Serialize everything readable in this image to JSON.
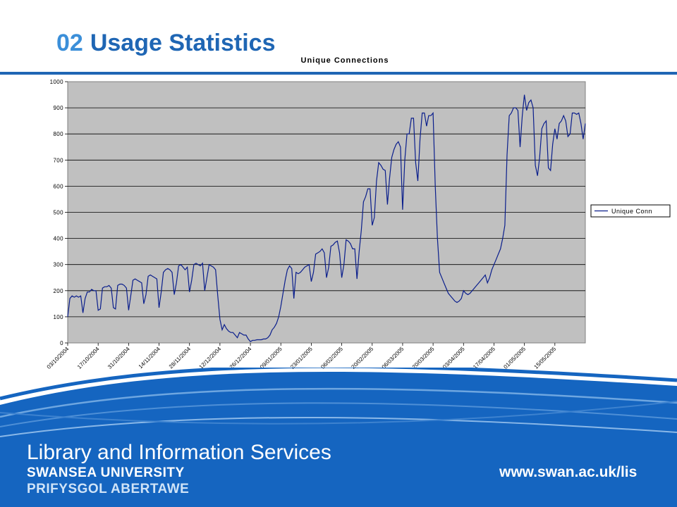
{
  "slide": {
    "number": "02",
    "title": "Usage Statistics"
  },
  "footer": {
    "department": "Library and Information Services",
    "university_en": "SWANSEA UNIVERSITY",
    "university_cy": "PRIFYSGOL ABERTAWE",
    "url": "www.swan.ac.uk/lis"
  },
  "colors": {
    "title": "#1f66b4",
    "number": "#3b8fd9",
    "plot_bg": "#c0c0c0",
    "series": "#0a1e8c",
    "footer_blue": "#1565c0"
  },
  "chart_data": {
    "type": "line",
    "title": "Unique Connections",
    "xlabel": "",
    "ylabel": "",
    "ylim": [
      0,
      1000
    ],
    "yticks": [
      0,
      100,
      200,
      300,
      400,
      500,
      600,
      700,
      800,
      900,
      1000
    ],
    "grid": true,
    "legend": "right",
    "x_tick_labels": [
      "03/10/2004",
      "17/10/2004",
      "31/10/2004",
      "14/11/2004",
      "28/11/2004",
      "12/12/2004",
      "26/12/2004",
      "09/01/2005",
      "23/01/2005",
      "06/02/2005",
      "20/02/2005",
      "06/03/2005",
      "20/03/2005",
      "03/04/2005",
      "17/04/2005",
      "01/05/2005",
      "15/05/2005"
    ],
    "series": [
      {
        "name": "Unique Conn",
        "values": [
          100,
          170,
          180,
          175,
          180,
          175,
          180,
          115,
          170,
          195,
          195,
          205,
          200,
          200,
          125,
          130,
          210,
          215,
          215,
          220,
          210,
          135,
          130,
          220,
          225,
          225,
          220,
          210,
          125,
          180,
          240,
          245,
          240,
          235,
          230,
          150,
          185,
          255,
          260,
          255,
          250,
          245,
          135,
          195,
          270,
          280,
          285,
          280,
          270,
          185,
          230,
          295,
          300,
          290,
          280,
          290,
          195,
          240,
          300,
          305,
          300,
          295,
          305,
          200,
          250,
          300,
          295,
          290,
          280,
          180,
          90,
          50,
          70,
          55,
          45,
          40,
          40,
          30,
          20,
          40,
          35,
          30,
          30,
          15,
          5,
          10,
          10,
          12,
          12,
          12,
          15,
          15,
          20,
          30,
          50,
          60,
          75,
          100,
          140,
          190,
          240,
          280,
          295,
          285,
          170,
          270,
          265,
          270,
          280,
          290,
          295,
          300,
          235,
          270,
          340,
          345,
          350,
          360,
          345,
          250,
          290,
          370,
          375,
          385,
          390,
          345,
          250,
          300,
          395,
          390,
          380,
          360,
          360,
          245,
          350,
          430,
          540,
          560,
          590,
          590,
          450,
          480,
          620,
          690,
          680,
          665,
          660,
          530,
          630,
          710,
          740,
          760,
          770,
          750,
          510,
          700,
          800,
          800,
          860,
          860,
          690,
          620,
          780,
          880,
          880,
          830,
          870,
          870,
          880,
          600,
          400,
          270,
          250,
          230,
          210,
          190,
          180,
          170,
          160,
          155,
          160,
          170,
          200,
          190,
          185,
          190,
          200,
          210,
          220,
          230,
          240,
          250,
          260,
          230,
          250,
          280,
          300,
          320,
          340,
          360,
          400,
          450,
          720,
          870,
          880,
          900,
          900,
          890,
          750,
          870,
          950,
          890,
          920,
          930,
          900,
          680,
          640,
          710,
          820,
          840,
          850,
          670,
          660,
          760,
          820,
          780,
          840,
          850,
          870,
          850,
          790,
          800,
          880,
          880,
          875,
          880,
          840,
          780,
          840
        ]
      }
    ]
  }
}
